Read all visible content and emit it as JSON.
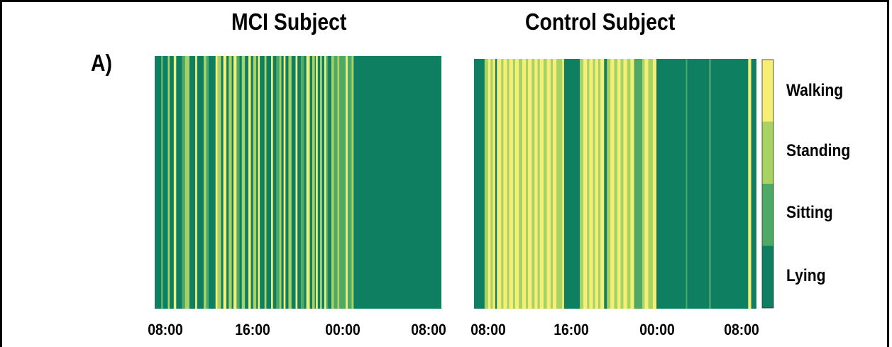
{
  "panel_label": "A)",
  "colors": {
    "Lying": "#0f7f62",
    "Sitting": "#4ea965",
    "Standing": "#a8d262",
    "Walking": "#f5ef75"
  },
  "chart_data": [
    {
      "type": "heatmap",
      "title": "MCI Subject",
      "x_ticks": [
        "08:00",
        "16:00",
        "00:00",
        "08:00"
      ],
      "x_range_hours": [
        0,
        24
      ],
      "categories": [
        "Lying",
        "Sitting",
        "Standing",
        "Walking"
      ],
      "segments": [
        {
          "start": 0.0,
          "end": 0.55,
          "state": "Lying"
        },
        {
          "start": 0.55,
          "end": 0.7,
          "state": "Sitting"
        },
        {
          "start": 0.7,
          "end": 1.1,
          "state": "Lying"
        },
        {
          "start": 1.1,
          "end": 1.25,
          "state": "Standing"
        },
        {
          "start": 1.25,
          "end": 1.6,
          "state": "Lying"
        },
        {
          "start": 1.6,
          "end": 1.8,
          "state": "Walking"
        },
        {
          "start": 1.8,
          "end": 2.3,
          "state": "Lying"
        },
        {
          "start": 2.3,
          "end": 2.55,
          "state": "Sitting"
        },
        {
          "start": 2.55,
          "end": 2.9,
          "state": "Standing"
        },
        {
          "start": 2.9,
          "end": 3.4,
          "state": "Lying"
        },
        {
          "start": 3.4,
          "end": 3.55,
          "state": "Walking"
        },
        {
          "start": 3.55,
          "end": 4.1,
          "state": "Lying"
        },
        {
          "start": 4.1,
          "end": 4.3,
          "state": "Standing"
        },
        {
          "start": 4.3,
          "end": 4.5,
          "state": "Sitting"
        },
        {
          "start": 4.5,
          "end": 5.1,
          "state": "Lying"
        },
        {
          "start": 5.1,
          "end": 5.25,
          "state": "Walking"
        },
        {
          "start": 5.25,
          "end": 5.55,
          "state": "Standing"
        },
        {
          "start": 5.55,
          "end": 5.75,
          "state": "Lying"
        },
        {
          "start": 5.75,
          "end": 6.0,
          "state": "Walking"
        },
        {
          "start": 6.0,
          "end": 6.2,
          "state": "Lying"
        },
        {
          "start": 6.2,
          "end": 6.45,
          "state": "Standing"
        },
        {
          "start": 6.45,
          "end": 6.6,
          "state": "Lying"
        },
        {
          "start": 6.6,
          "end": 6.85,
          "state": "Walking"
        },
        {
          "start": 6.85,
          "end": 7.1,
          "state": "Sitting"
        },
        {
          "start": 7.1,
          "end": 7.3,
          "state": "Lying"
        },
        {
          "start": 7.3,
          "end": 7.55,
          "state": "Standing"
        },
        {
          "start": 7.55,
          "end": 7.85,
          "state": "Lying"
        },
        {
          "start": 7.85,
          "end": 8.05,
          "state": "Walking"
        },
        {
          "start": 8.05,
          "end": 8.25,
          "state": "Lying"
        },
        {
          "start": 8.25,
          "end": 8.5,
          "state": "Standing"
        },
        {
          "start": 8.5,
          "end": 8.65,
          "state": "Lying"
        },
        {
          "start": 8.65,
          "end": 8.8,
          "state": "Walking"
        },
        {
          "start": 8.8,
          "end": 9.2,
          "state": "Lying"
        },
        {
          "start": 9.2,
          "end": 9.35,
          "state": "Standing"
        },
        {
          "start": 9.35,
          "end": 9.75,
          "state": "Lying"
        },
        {
          "start": 9.75,
          "end": 9.9,
          "state": "Walking"
        },
        {
          "start": 9.9,
          "end": 10.2,
          "state": "Lying"
        },
        {
          "start": 10.2,
          "end": 10.45,
          "state": "Sitting"
        },
        {
          "start": 10.45,
          "end": 10.6,
          "state": "Standing"
        },
        {
          "start": 10.6,
          "end": 10.8,
          "state": "Lying"
        },
        {
          "start": 10.8,
          "end": 10.95,
          "state": "Walking"
        },
        {
          "start": 10.95,
          "end": 11.2,
          "state": "Lying"
        },
        {
          "start": 11.2,
          "end": 11.45,
          "state": "Standing"
        },
        {
          "start": 11.45,
          "end": 11.8,
          "state": "Lying"
        },
        {
          "start": 11.8,
          "end": 11.95,
          "state": "Walking"
        },
        {
          "start": 11.95,
          "end": 12.25,
          "state": "Lying"
        },
        {
          "start": 12.25,
          "end": 12.5,
          "state": "Sitting"
        },
        {
          "start": 12.5,
          "end": 12.7,
          "state": "Lying"
        },
        {
          "start": 12.7,
          "end": 12.9,
          "state": "Walking"
        },
        {
          "start": 12.9,
          "end": 13.0,
          "state": "Standing"
        },
        {
          "start": 13.0,
          "end": 13.2,
          "state": "Lying"
        },
        {
          "start": 13.2,
          "end": 13.4,
          "state": "Standing"
        },
        {
          "start": 13.4,
          "end": 13.5,
          "state": "Lying"
        },
        {
          "start": 13.5,
          "end": 13.65,
          "state": "Walking"
        },
        {
          "start": 13.65,
          "end": 13.85,
          "state": "Lying"
        },
        {
          "start": 13.85,
          "end": 14.0,
          "state": "Standing"
        },
        {
          "start": 14.0,
          "end": 14.2,
          "state": "Lying"
        },
        {
          "start": 14.2,
          "end": 14.35,
          "state": "Walking"
        },
        {
          "start": 14.35,
          "end": 14.5,
          "state": "Sitting"
        },
        {
          "start": 14.5,
          "end": 14.8,
          "state": "Lying"
        },
        {
          "start": 14.8,
          "end": 15.0,
          "state": "Standing"
        },
        {
          "start": 15.0,
          "end": 15.3,
          "state": "Sitting"
        },
        {
          "start": 15.3,
          "end": 15.45,
          "state": "Standing"
        },
        {
          "start": 15.45,
          "end": 16.0,
          "state": "Sitting"
        },
        {
          "start": 16.0,
          "end": 16.15,
          "state": "Walking"
        },
        {
          "start": 16.15,
          "end": 16.5,
          "state": "Sitting"
        },
        {
          "start": 16.5,
          "end": 16.65,
          "state": "Standing"
        },
        {
          "start": 16.65,
          "end": 24.0,
          "state": "Lying"
        }
      ]
    },
    {
      "type": "heatmap",
      "title": "Control Subject",
      "x_ticks": [
        "08:00",
        "16:00",
        "00:00",
        "08:00"
      ],
      "x_range_hours": [
        0,
        24
      ],
      "categories": [
        "Lying",
        "Sitting",
        "Standing",
        "Walking"
      ],
      "segments": [
        {
          "start": 0.0,
          "end": 0.9,
          "state": "Lying"
        },
        {
          "start": 0.9,
          "end": 1.2,
          "state": "Standing"
        },
        {
          "start": 1.2,
          "end": 1.4,
          "state": "Walking"
        },
        {
          "start": 1.4,
          "end": 1.6,
          "state": "Standing"
        },
        {
          "start": 1.6,
          "end": 1.8,
          "state": "Walking"
        },
        {
          "start": 1.8,
          "end": 1.95,
          "state": "Lying"
        },
        {
          "start": 1.95,
          "end": 2.3,
          "state": "Walking"
        },
        {
          "start": 2.3,
          "end": 2.5,
          "state": "Standing"
        },
        {
          "start": 2.5,
          "end": 2.8,
          "state": "Walking"
        },
        {
          "start": 2.8,
          "end": 3.0,
          "state": "Standing"
        },
        {
          "start": 3.0,
          "end": 3.3,
          "state": "Walking"
        },
        {
          "start": 3.3,
          "end": 3.5,
          "state": "Standing"
        },
        {
          "start": 3.5,
          "end": 3.8,
          "state": "Walking"
        },
        {
          "start": 3.8,
          "end": 4.1,
          "state": "Standing"
        },
        {
          "start": 4.1,
          "end": 4.4,
          "state": "Walking"
        },
        {
          "start": 4.4,
          "end": 4.6,
          "state": "Standing"
        },
        {
          "start": 4.6,
          "end": 4.9,
          "state": "Walking"
        },
        {
          "start": 4.9,
          "end": 5.15,
          "state": "Standing"
        },
        {
          "start": 5.15,
          "end": 5.4,
          "state": "Walking"
        },
        {
          "start": 5.4,
          "end": 5.6,
          "state": "Standing"
        },
        {
          "start": 5.6,
          "end": 5.9,
          "state": "Walking"
        },
        {
          "start": 5.9,
          "end": 6.2,
          "state": "Standing"
        },
        {
          "start": 6.2,
          "end": 6.5,
          "state": "Walking"
        },
        {
          "start": 6.5,
          "end": 6.7,
          "state": "Standing"
        },
        {
          "start": 6.7,
          "end": 7.0,
          "state": "Walking"
        },
        {
          "start": 7.0,
          "end": 7.5,
          "state": "Standing"
        },
        {
          "start": 7.5,
          "end": 7.65,
          "state": "Walking"
        },
        {
          "start": 7.65,
          "end": 9.0,
          "state": "Lying"
        },
        {
          "start": 9.0,
          "end": 9.3,
          "state": "Standing"
        },
        {
          "start": 9.3,
          "end": 9.6,
          "state": "Walking"
        },
        {
          "start": 9.6,
          "end": 9.8,
          "state": "Standing"
        },
        {
          "start": 9.8,
          "end": 10.1,
          "state": "Walking"
        },
        {
          "start": 10.1,
          "end": 10.3,
          "state": "Standing"
        },
        {
          "start": 10.3,
          "end": 10.55,
          "state": "Walking"
        },
        {
          "start": 10.55,
          "end": 10.75,
          "state": "Standing"
        },
        {
          "start": 10.75,
          "end": 11.05,
          "state": "Walking"
        },
        {
          "start": 11.05,
          "end": 11.3,
          "state": "Lying"
        },
        {
          "start": 11.3,
          "end": 11.6,
          "state": "Standing"
        },
        {
          "start": 11.6,
          "end": 11.9,
          "state": "Walking"
        },
        {
          "start": 11.9,
          "end": 12.2,
          "state": "Standing"
        },
        {
          "start": 12.2,
          "end": 12.45,
          "state": "Walking"
        },
        {
          "start": 12.45,
          "end": 12.7,
          "state": "Standing"
        },
        {
          "start": 12.7,
          "end": 13.0,
          "state": "Walking"
        },
        {
          "start": 13.0,
          "end": 13.3,
          "state": "Standing"
        },
        {
          "start": 13.3,
          "end": 13.6,
          "state": "Walking"
        },
        {
          "start": 13.6,
          "end": 14.3,
          "state": "Sitting"
        },
        {
          "start": 14.3,
          "end": 14.5,
          "state": "Standing"
        },
        {
          "start": 14.5,
          "end": 14.8,
          "state": "Walking"
        },
        {
          "start": 14.8,
          "end": 15.2,
          "state": "Standing"
        },
        {
          "start": 15.2,
          "end": 15.5,
          "state": "Walking"
        },
        {
          "start": 15.5,
          "end": 18.0,
          "state": "Lying"
        },
        {
          "start": 18.0,
          "end": 18.1,
          "state": "Sitting"
        },
        {
          "start": 18.1,
          "end": 20.0,
          "state": "Lying"
        },
        {
          "start": 20.0,
          "end": 20.1,
          "state": "Sitting"
        },
        {
          "start": 20.1,
          "end": 23.3,
          "state": "Lying"
        },
        {
          "start": 23.3,
          "end": 23.55,
          "state": "Walking"
        },
        {
          "start": 23.55,
          "end": 24.0,
          "state": "Lying"
        }
      ]
    }
  ],
  "colorbar": {
    "labels": [
      "Walking",
      "Standing",
      "Sitting",
      "Lying"
    ]
  }
}
